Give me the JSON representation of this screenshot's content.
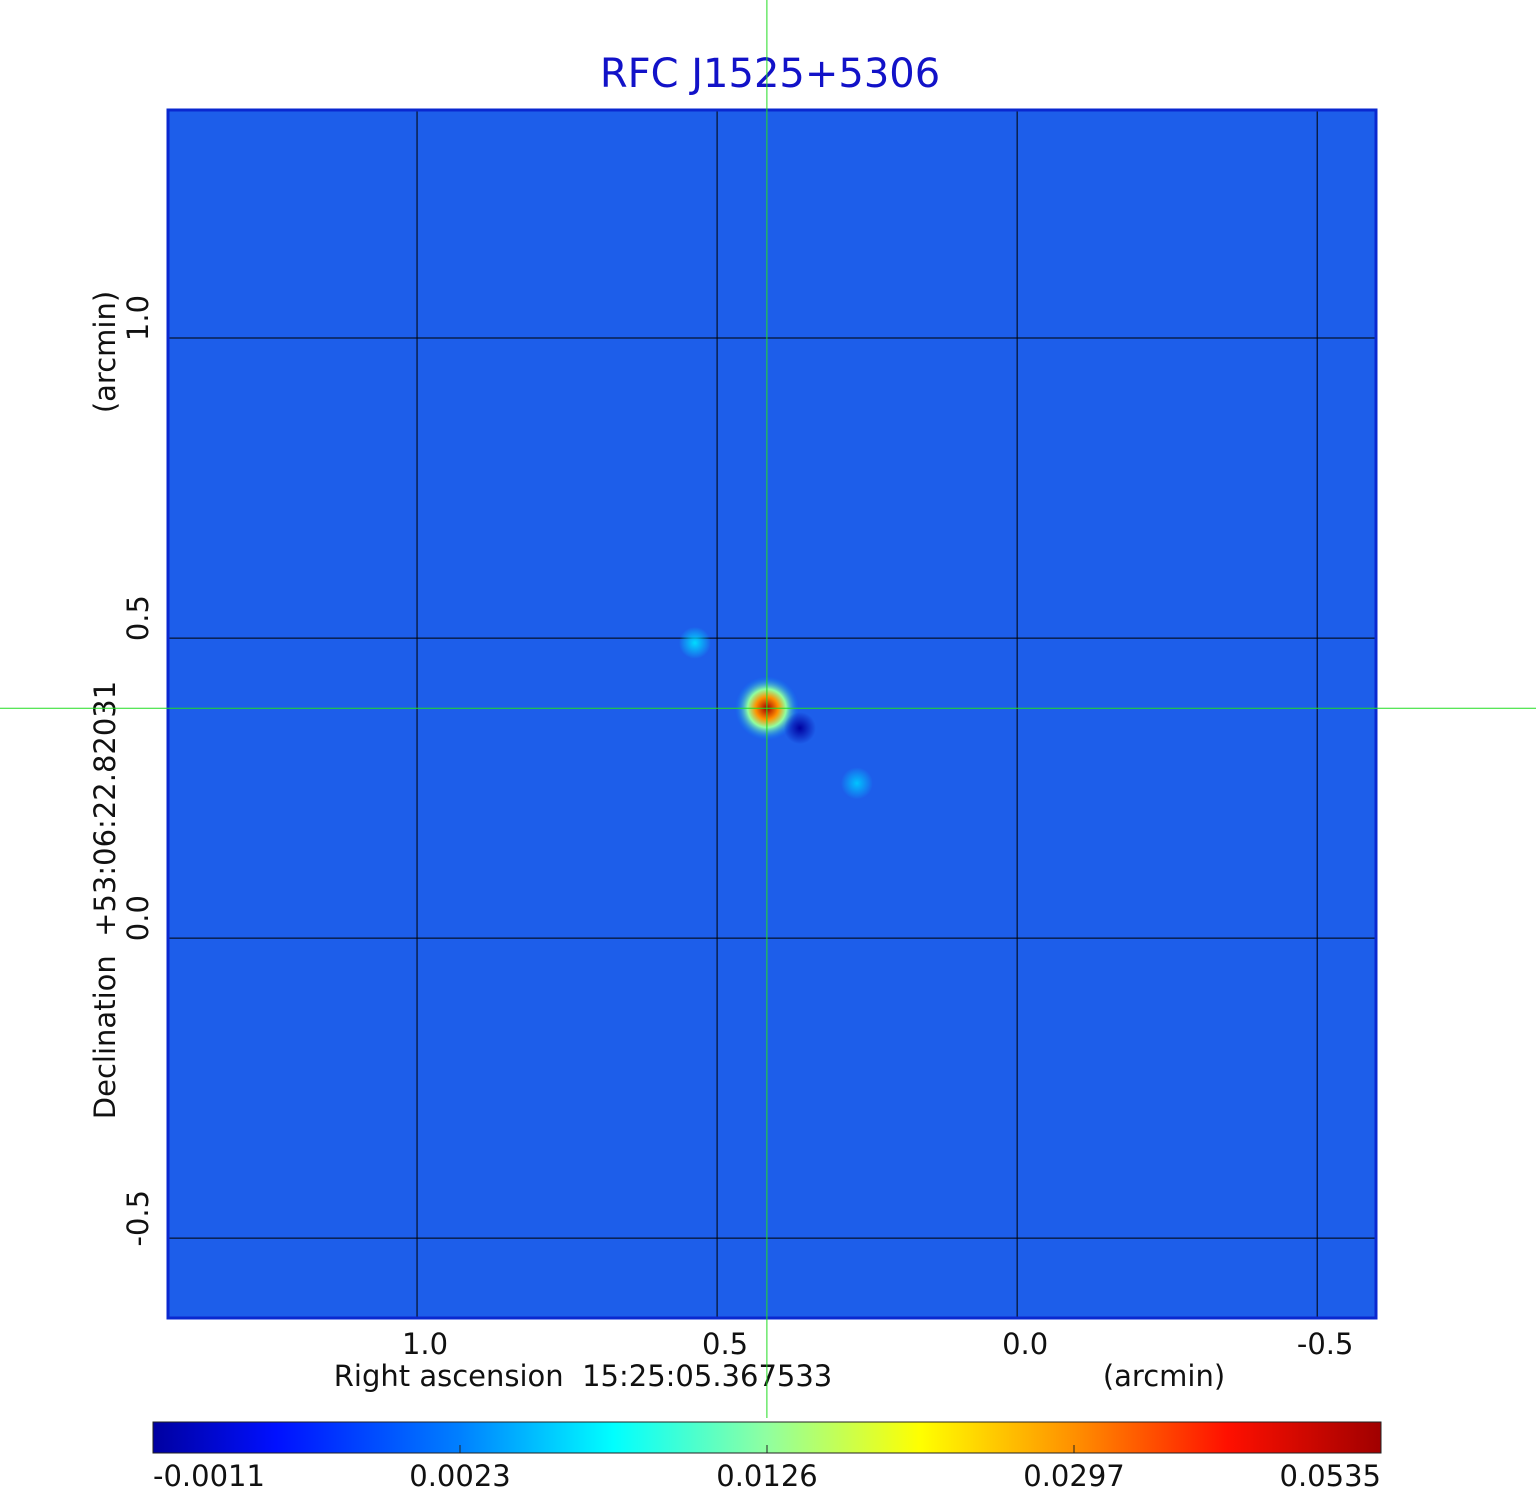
{
  "chart_data": {
    "type": "image",
    "title": "RFC J1525+5306",
    "x_label": "Right ascension  15:25:05.367533",
    "x_unit": "(arcmin)",
    "y_label": "Declination  +53:06:22.82031",
    "y_unit": "(arcmin)",
    "xlim": [
      1.415,
      -0.598
    ],
    "ylim": [
      -0.633,
      1.38
    ],
    "xticks": [
      {
        "value": 1,
        "label": "1.0"
      },
      0.5,
      {
        "value": 0,
        "label": "0.0"
      },
      -0.5
    ],
    "yticks": [
      {
        "value": 1,
        "label": "1.0"
      },
      0.5,
      {
        "value": 0,
        "label": "0.0"
      },
      -0.5
    ],
    "grid": true,
    "sources": {
      "x": [
        0.417,
        0.537,
        0.267,
        0.362
      ],
      "y": [
        0.383,
        0.492,
        0.258,
        0.35
      ],
      "values": [
        0.0535,
        0.006,
        0.005,
        -0.0011
      ]
    },
    "colorbar": {
      "ticks": [
        -0.0011,
        0.0023,
        0.0126,
        0.0297,
        0.0535
      ],
      "colormap": "jet"
    }
  }
}
